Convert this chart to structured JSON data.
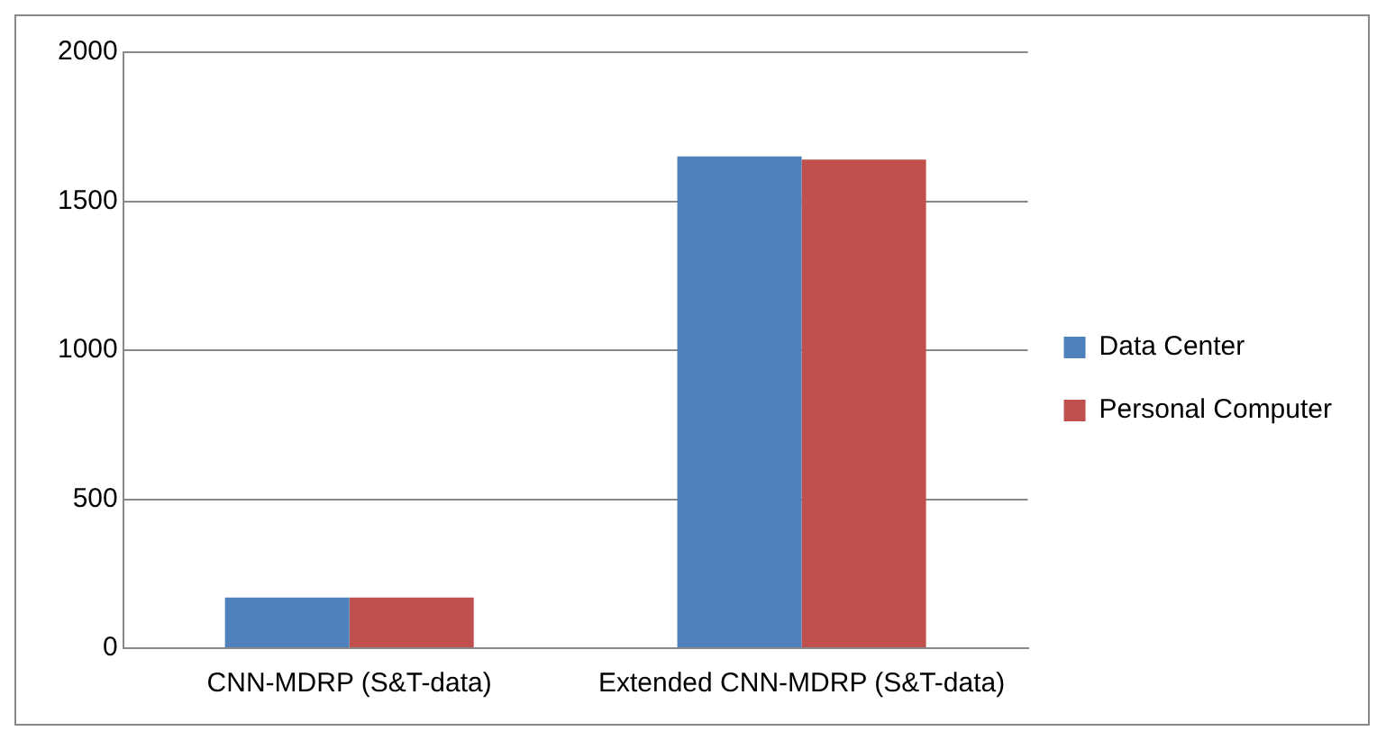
{
  "chart_data": {
    "type": "bar",
    "categories": [
      "CNN-MDRP (S&T-data)",
      "Extended CNN-MDRP (S&T-data)"
    ],
    "series": [
      {
        "name": "Data Center",
        "color": "#4f81bd",
        "values": [
          170,
          1650
        ]
      },
      {
        "name": "Personal Computer",
        "color": "#c0504d",
        "values": [
          170,
          1640
        ]
      }
    ],
    "ylim": [
      0,
      2000
    ],
    "yticks": [
      0,
      500,
      1000,
      1500,
      2000
    ],
    "grid": "y",
    "legend": "right"
  }
}
